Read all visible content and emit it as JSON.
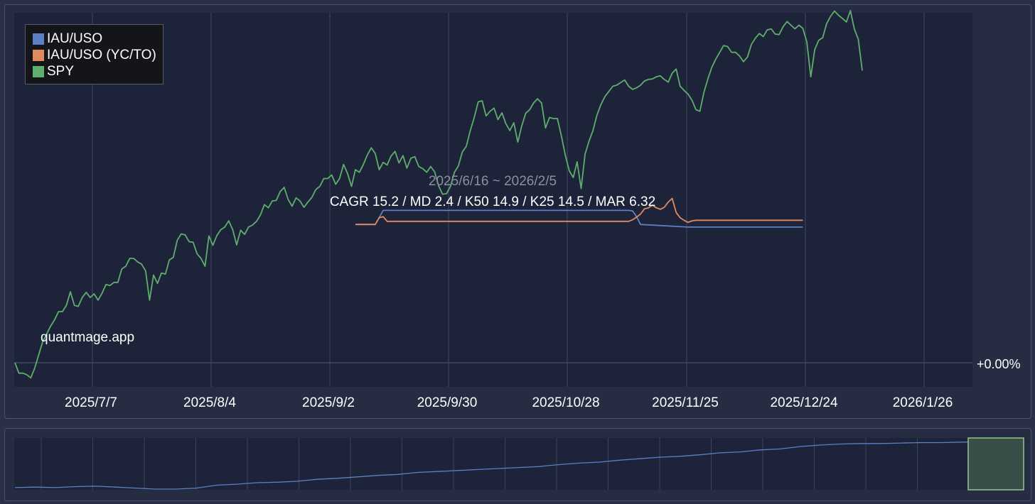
{
  "chart_data": {
    "type": "line",
    "date_range": "2025/6/16 ~ 2026/2/5",
    "stats": "CAGR 15.2 / MD 2.4 / K50 14.9 / K25 14.5 / MAR 6.32",
    "watermark": "quantmage.app",
    "x_ticks": [
      "2025/7/7",
      "2025/8/4",
      "2025/9/2",
      "2025/9/30",
      "2025/10/28",
      "2025/11/25",
      "2025/12/24",
      "2026/1/26"
    ],
    "y_tick_label": "+0.00%",
    "legend_position": "top-left",
    "grid": true,
    "series": [
      {
        "name": "IAU/USO",
        "color": "#5b80c4",
        "points": [
          [
            86,
            26.5
          ],
          [
            87,
            26.5
          ],
          [
            88,
            26.5
          ],
          [
            89,
            26.5
          ],
          [
            90,
            26.5
          ],
          [
            91,
            26.5
          ],
          [
            92,
            27.8
          ],
          [
            93,
            29.2
          ],
          [
            94,
            29.2
          ],
          [
            95,
            29.2
          ],
          [
            100,
            29.2
          ],
          [
            110,
            29.2
          ],
          [
            120,
            29.2
          ],
          [
            130,
            29.2
          ],
          [
            140,
            29.2
          ],
          [
            150,
            29.2
          ],
          [
            155,
            29.2
          ],
          [
            156,
            29.1
          ],
          [
            157,
            28.0
          ],
          [
            158,
            26.5
          ],
          [
            170,
            26.0
          ],
          [
            180,
            26.0
          ],
          [
            199,
            26.0
          ]
        ]
      },
      {
        "name": "IAU/USO (YC/TO)",
        "color": "#e08a60",
        "points": [
          [
            86,
            26.5
          ],
          [
            87,
            26.5
          ],
          [
            88,
            26.5
          ],
          [
            89,
            26.5
          ],
          [
            90,
            26.5
          ],
          [
            91,
            26.5
          ],
          [
            92,
            27.8
          ],
          [
            93,
            28.0
          ],
          [
            94,
            27.1
          ],
          [
            95,
            27.1
          ],
          [
            100,
            27.1
          ],
          [
            110,
            27.1
          ],
          [
            120,
            27.1
          ],
          [
            130,
            27.1
          ],
          [
            140,
            27.1
          ],
          [
            150,
            27.1
          ],
          [
            155,
            27.1
          ],
          [
            156,
            27.4
          ],
          [
            157,
            27.9
          ],
          [
            158,
            28.5
          ],
          [
            159,
            29.5
          ],
          [
            160,
            29.7
          ],
          [
            161,
            30.2
          ],
          [
            162,
            29.7
          ],
          [
            163,
            29.4
          ],
          [
            164,
            29.8
          ],
          [
            165,
            30.8
          ],
          [
            166,
            31.5
          ],
          [
            167,
            28.8
          ],
          [
            168,
            27.8
          ],
          [
            169,
            27.3
          ],
          [
            170,
            26.9
          ],
          [
            171,
            27.2
          ],
          [
            172,
            27.3
          ],
          [
            180,
            27.3
          ],
          [
            199,
            27.3
          ]
        ]
      },
      {
        "name": "SPY",
        "color": "#5fae6e",
        "values": [
          0.0,
          -2.0,
          -2.0,
          -2.3,
          -2.9,
          -1.0,
          1.5,
          4.0,
          5.5,
          7.0,
          8.2,
          9.8,
          9.8,
          11.0,
          13.6,
          11.0,
          10.8,
          12.5,
          13.5,
          12.5,
          13.2,
          12.0,
          13.3,
          15.0,
          14.8,
          15.4,
          15.4,
          18.0,
          18.5,
          20.0,
          20.0,
          19.3,
          18.9,
          17.6,
          12.0,
          16.8,
          15.2,
          17.2,
          17.0,
          19.7,
          20.2,
          23.5,
          24.7,
          24.5,
          23.2,
          23.1,
          20.9,
          20.0,
          18.5,
          24.3,
          22.5,
          24.4,
          25.5,
          26.0,
          27.2,
          25.5,
          22.6,
          25.4,
          24.6,
          26.0,
          26.4,
          27.1,
          28.3,
          30.3,
          29.7,
          31.0,
          31.1,
          32.8,
          33.6,
          31.3,
          30.0,
          31.6,
          31.0,
          29.8,
          30.8,
          31.7,
          33.2,
          33.8,
          35.3,
          35.3,
          36.0,
          34.2,
          35.3,
          38.0,
          36.3,
          33.8,
          37.0,
          36.5,
          38.0,
          39.8,
          41.2,
          40.1,
          37.0,
          38.4,
          37.9,
          39.6,
          40.5,
          38.3,
          39.7,
          37.3,
          39.2,
          39.5,
          37.6,
          37.2,
          36.5,
          37.6,
          36.6,
          33.9,
          32.3,
          32.4,
          33.8,
          36.5,
          37.7,
          40.4,
          41.5,
          44.5,
          47.0,
          50.0,
          50.2,
          47.3,
          48.2,
          48.8,
          46.6,
          47.9,
          45.8,
          44.5,
          46.0,
          42.3,
          45.4,
          47.8,
          48.5,
          49.8,
          50.6,
          49.8,
          45.0,
          47.0,
          46.8,
          46.8,
          43.5,
          39.8,
          36.8,
          35.5,
          38.5,
          33.4,
          40.0,
          42.5,
          44.5,
          47.5,
          49.5,
          51.0,
          52.0,
          53.0,
          53.2,
          53.7,
          54.2,
          53.0,
          52.4,
          52.7,
          53.2,
          54.0,
          54.3,
          54.4,
          54.8,
          55.0,
          54.3,
          53.8,
          55.5,
          56.3,
          53.0,
          52.2,
          51.5,
          50.3,
          48.5,
          48.2,
          51.8,
          54.4,
          56.6,
          58.2,
          59.5,
          60.8,
          60.6,
          59.5,
          59.5,
          58.8,
          57.7,
          58.6,
          61.0,
          62.2,
          63.1,
          62.5,
          63.8,
          64.0,
          63.0,
          62.9,
          64.4,
          65.4,
          64.7,
          64.0,
          64.7,
          64.1,
          61.5,
          54.8,
          60.0,
          61.8,
          62.3,
          65.0,
          66.4,
          67.4,
          66.6,
          66.0,
          65.3,
          67.5,
          64.0,
          62.0,
          56.0
        ]
      }
    ],
    "navigator": {
      "series_name": "IAU/USO",
      "points": [
        [
          0,
          0.03
        ],
        [
          2,
          0.04
        ],
        [
          4,
          0.03
        ],
        [
          6,
          0.05
        ],
        [
          8,
          0.06
        ],
        [
          10,
          0.04
        ],
        [
          12,
          0.02
        ],
        [
          14,
          0.0
        ],
        [
          16,
          0.0
        ],
        [
          18,
          0.02
        ],
        [
          20,
          0.08
        ],
        [
          22,
          0.1
        ],
        [
          24,
          0.13
        ],
        [
          26,
          0.14
        ],
        [
          28,
          0.16
        ],
        [
          30,
          0.2
        ],
        [
          32,
          0.22
        ],
        [
          34,
          0.25
        ],
        [
          36,
          0.28
        ],
        [
          38,
          0.3
        ],
        [
          40,
          0.34
        ],
        [
          42,
          0.36
        ],
        [
          44,
          0.38
        ],
        [
          46,
          0.4
        ],
        [
          48,
          0.42
        ],
        [
          50,
          0.44
        ],
        [
          52,
          0.46
        ],
        [
          54,
          0.5
        ],
        [
          56,
          0.53
        ],
        [
          58,
          0.55
        ],
        [
          60,
          0.59
        ],
        [
          62,
          0.62
        ],
        [
          64,
          0.65
        ],
        [
          66,
          0.67
        ],
        [
          68,
          0.7
        ],
        [
          70,
          0.74
        ],
        [
          72,
          0.76
        ],
        [
          74,
          0.8
        ],
        [
          76,
          0.82
        ],
        [
          78,
          0.87
        ],
        [
          80,
          0.9
        ],
        [
          82,
          0.92
        ],
        [
          84,
          0.93
        ],
        [
          86,
          0.93
        ],
        [
          88,
          0.94
        ],
        [
          90,
          0.95
        ],
        [
          92,
          0.95
        ],
        [
          94,
          0.96
        ],
        [
          96,
          0.97
        ],
        [
          98,
          0.98
        ],
        [
          100,
          0.97
        ]
      ]
    },
    "navigator_selection": {
      "start": 0.945,
      "end": 1.0
    }
  }
}
